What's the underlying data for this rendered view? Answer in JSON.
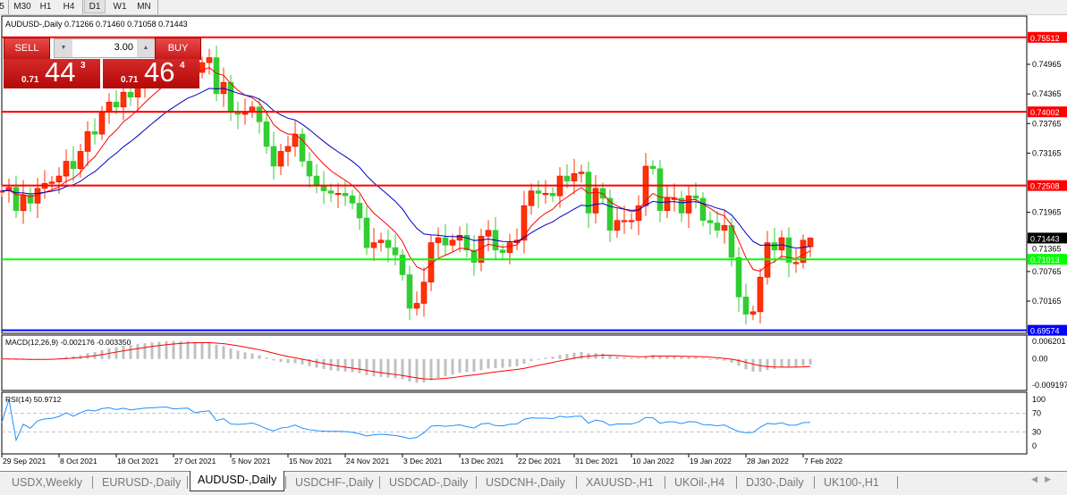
{
  "timeframes": [
    {
      "label": "5",
      "active": false
    },
    {
      "label": "M30",
      "active": false
    },
    {
      "label": "H1",
      "active": false
    },
    {
      "label": "H4",
      "active": false
    },
    {
      "label": "D1",
      "active": true
    },
    {
      "label": "W1",
      "active": false
    },
    {
      "label": "MN",
      "active": false
    }
  ],
  "chart_title": "AUDUSD-,Daily  0.71266 0.71460 0.71058 0.71443",
  "trade_panel": {
    "sell_label": "SELL",
    "buy_label": "BUY",
    "lot": "3.00",
    "sell": {
      "prefix": "0.71",
      "big": "44",
      "pip": "3"
    },
    "buy": {
      "prefix": "0.71",
      "big": "46",
      "pip": "4"
    }
  },
  "macd_label": "MACD(12,26,9) -0.002176 -0.003350",
  "rsi_label": "RSI(14) 50.9712",
  "tabs": [
    {
      "label": "USDX,Weekly"
    },
    {
      "label": "EURUSD-,Daily"
    },
    {
      "label": "AUDUSD-,Daily",
      "active": true
    },
    {
      "label": "USDCHF-,Daily"
    },
    {
      "label": "USDCAD-,Daily"
    },
    {
      "label": "USDCNH-,Daily"
    },
    {
      "label": "XAUUSD-,H1"
    },
    {
      "label": "UKOil-,H4"
    },
    {
      "label": "DJ30-,Daily"
    },
    {
      "label": "UK100-,H1"
    }
  ],
  "colors": {
    "bull": "#ff3300",
    "bear": "#32cd32",
    "fast_ma": "#ff0000",
    "slow_ma": "#0000c0",
    "macd_hist": "#c0c0c0",
    "macd_signal": "#ff0000",
    "rsi": "#1e90ff"
  },
  "chart_data": {
    "type": "candlestick",
    "symbol": "AUDUSD-",
    "timeframe": "Daily",
    "ylim": [
      0.6945,
      0.757
    ],
    "price_ticks": [
      "0.74965",
      "0.74365",
      "0.73765",
      "0.73165",
      "0.71965",
      "0.71365",
      "0.70765",
      "0.70165"
    ],
    "date_ticks": [
      "29 Sep 2021",
      "8 Oct 2021",
      "18 Oct 2021",
      "27 Oct 2021",
      "5 Nov 2021",
      "15 Nov 2021",
      "24 Nov 2021",
      "3 Dec 2021",
      "13 Dec 2021",
      "22 Dec 2021",
      "31 Dec 2021",
      "10 Jan 2022",
      "19 Jan 2022",
      "28 Jan 2022",
      "7 Feb 2022"
    ],
    "closes": [
      0.724,
      0.7247,
      0.72,
      0.7232,
      0.7215,
      0.7245,
      0.7255,
      0.7258,
      0.727,
      0.73,
      0.7285,
      0.732,
      0.736,
      0.7355,
      0.74,
      0.742,
      0.741,
      0.744,
      0.743,
      0.745,
      0.747,
      0.748,
      0.749,
      0.75,
      0.749,
      0.75,
      0.7505,
      0.748,
      0.75,
      0.751,
      0.7437,
      0.746,
      0.74,
      0.7395,
      0.74,
      0.741,
      0.738,
      0.733,
      0.729,
      0.732,
      0.733,
      0.7355,
      0.73,
      0.727,
      0.725,
      0.724,
      0.7235,
      0.7235,
      0.723,
      0.7215,
      0.7185,
      0.7125,
      0.7135,
      0.714,
      0.7125,
      0.711,
      0.707,
      0.7002,
      0.7012,
      0.7055,
      0.7135,
      0.7145,
      0.713,
      0.714,
      0.715,
      0.712,
      0.7095,
      0.7148,
      0.716,
      0.712,
      0.7115,
      0.7135,
      0.714,
      0.721,
      0.724,
      0.7235,
      0.7235,
      0.723,
      0.727,
      0.726,
      0.7275,
      0.7278,
      0.7195,
      0.7245,
      0.7225,
      0.716,
      0.718,
      0.718,
      0.718,
      0.721,
      0.729,
      0.7285,
      0.72,
      0.7225,
      0.7225,
      0.7195,
      0.723,
      0.7225,
      0.718,
      0.7175,
      0.716,
      0.717,
      0.7105,
      0.7025,
      0.699,
      0.6995,
      0.7065,
      0.7135,
      0.712,
      0.7145,
      0.7095,
      0.7095,
      0.714,
      0.71443
    ],
    "last_ohlc": {
      "open": 0.71266,
      "high": 0.7146,
      "low": 0.71058,
      "close": 0.71443
    },
    "levels": [
      {
        "price": "0.75512",
        "color": "#ff0000"
      },
      {
        "price": "0.74002",
        "color": "#ff0000"
      },
      {
        "price": "0.72508",
        "color": "#ff0000"
      },
      {
        "price": "0.71013",
        "color": "#00ff00"
      },
      {
        "price": "0.69574",
        "color": "#0000ff"
      }
    ],
    "current_price": "0.71443",
    "macd": {
      "params": [
        12,
        26,
        9
      ],
      "main": -0.002176,
      "signal": -0.00335,
      "ticks": [
        "0.006201",
        "0.00",
        "-0.009197"
      ],
      "ylim": [
        -0.009197,
        0.006201
      ]
    },
    "rsi": {
      "period": 14,
      "value": 50.9712,
      "ticks": [
        "100",
        "70",
        "30",
        "0"
      ],
      "levels": [
        70,
        30
      ]
    }
  }
}
